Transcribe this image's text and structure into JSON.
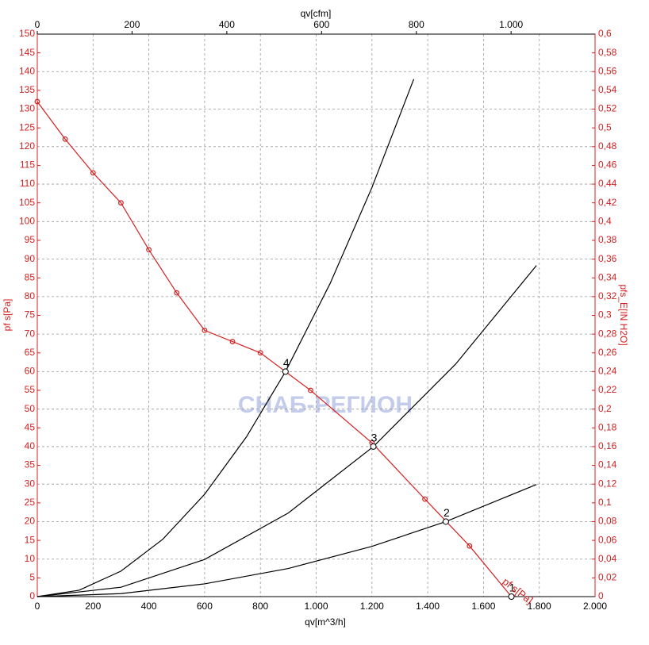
{
  "chart_data": {
    "type": "line",
    "x_label": "qv[m^3/h]",
    "x2_label": "qv[cfm]",
    "y_label": "pf s[Pa]",
    "y2_label": "pfs_E[IN H2O]",
    "curve_label": "pf s[Pa]",
    "watermark": "СНАБ-РЕГИОН",
    "grid": true,
    "xlim": [
      0,
      2000
    ],
    "xticks": [
      0,
      200,
      400,
      600,
      800,
      {
        "value": 1000,
        "label": "1.000"
      },
      {
        "value": 1200,
        "label": "1.200"
      },
      {
        "value": 1400,
        "label": "1.400"
      },
      {
        "value": 1600,
        "label": "1.600"
      },
      {
        "value": 1800,
        "label": "1.800"
      },
      {
        "value": 2000,
        "label": "2.000"
      }
    ],
    "x2lim": [
      0,
      1177.2
    ],
    "x2ticks": [
      0,
      200,
      400,
      600,
      800,
      {
        "value": 1000,
        "label": "1.000"
      }
    ],
    "ylim": [
      0,
      150
    ],
    "yticks": [
      0,
      5,
      10,
      15,
      20,
      25,
      30,
      35,
      40,
      45,
      50,
      55,
      60,
      65,
      70,
      75,
      80,
      85,
      90,
      95,
      100,
      105,
      110,
      115,
      120,
      125,
      130,
      135,
      140,
      145,
      150
    ],
    "y2lim": [
      0,
      0.6
    ],
    "y2ticks": [
      0,
      {
        "value": 0.02,
        "label": "0,02"
      },
      {
        "value": 0.04,
        "label": "0,04"
      },
      {
        "value": 0.06,
        "label": "0,06"
      },
      {
        "value": 0.08,
        "label": "0,08"
      },
      {
        "value": 0.1,
        "label": "0,1"
      },
      {
        "value": 0.12,
        "label": "0,12"
      },
      {
        "value": 0.14,
        "label": "0,14"
      },
      {
        "value": 0.16,
        "label": "0,16"
      },
      {
        "value": 0.18,
        "label": "0,18"
      },
      {
        "value": 0.2,
        "label": "0,2"
      },
      {
        "value": 0.22,
        "label": "0,22"
      },
      {
        "value": 0.24,
        "label": "0,24"
      },
      {
        "value": 0.26,
        "label": "0,26"
      },
      {
        "value": 0.28,
        "label": "0,28"
      },
      {
        "value": 0.3,
        "label": "0,3"
      },
      {
        "value": 0.32,
        "label": "0,32"
      },
      {
        "value": 0.34,
        "label": "0,34"
      },
      {
        "value": 0.36,
        "label": "0,36"
      },
      {
        "value": 0.38,
        "label": "0,38"
      },
      {
        "value": 0.4,
        "label": "0,4"
      },
      {
        "value": 0.42,
        "label": "0,42"
      },
      {
        "value": 0.44,
        "label": "0,44"
      },
      {
        "value": 0.46,
        "label": "0,46"
      },
      {
        "value": 0.48,
        "label": "0,48"
      },
      {
        "value": 0.5,
        "label": "0,5"
      },
      {
        "value": 0.52,
        "label": "0,52"
      },
      {
        "value": 0.54,
        "label": "0,54"
      },
      {
        "value": 0.56,
        "label": "0,56"
      },
      {
        "value": 0.58,
        "label": "0,58"
      },
      {
        "value": 0.6,
        "label": "0,6"
      }
    ],
    "series": [
      {
        "color": "#d42020",
        "markers": true,
        "x": [
          0,
          100,
          200,
          300,
          400,
          500,
          600,
          700,
          800,
          980,
          1200,
          1390,
          1550,
          1700
        ],
        "values": [
          132,
          122,
          113,
          105,
          92.5,
          81,
          71,
          68,
          65,
          55,
          41,
          26,
          13.5,
          0
        ]
      },
      {
        "color": "#000000",
        "markers": false,
        "x": [
          0,
          150,
          300,
          450,
          600,
          750,
          890,
          1050,
          1200,
          1350
        ],
        "values": [
          0,
          1.7,
          6.8,
          15.3,
          27.3,
          42.6,
          60,
          83.5,
          109.1,
          138
        ]
      },
      {
        "color": "#000000",
        "markers": false,
        "x": [
          0,
          300,
          600,
          900,
          1205,
          1500,
          1790
        ],
        "values": [
          0,
          2.5,
          9.9,
          22.3,
          40,
          62,
          88.3
        ]
      },
      {
        "color": "#000000",
        "markers": false,
        "x": [
          0,
          300,
          600,
          900,
          1200,
          1465,
          1790
        ],
        "values": [
          0,
          0.8,
          3.4,
          7.5,
          13.4,
          20,
          29.9
        ]
      }
    ],
    "annotations": [
      {
        "text": "4",
        "x": 890,
        "y": 60
      },
      {
        "text": "3",
        "x": 1205,
        "y": 40
      },
      {
        "text": "2",
        "x": 1465,
        "y": 20
      },
      {
        "text": "1",
        "x": 1700,
        "y": 0
      }
    ]
  }
}
